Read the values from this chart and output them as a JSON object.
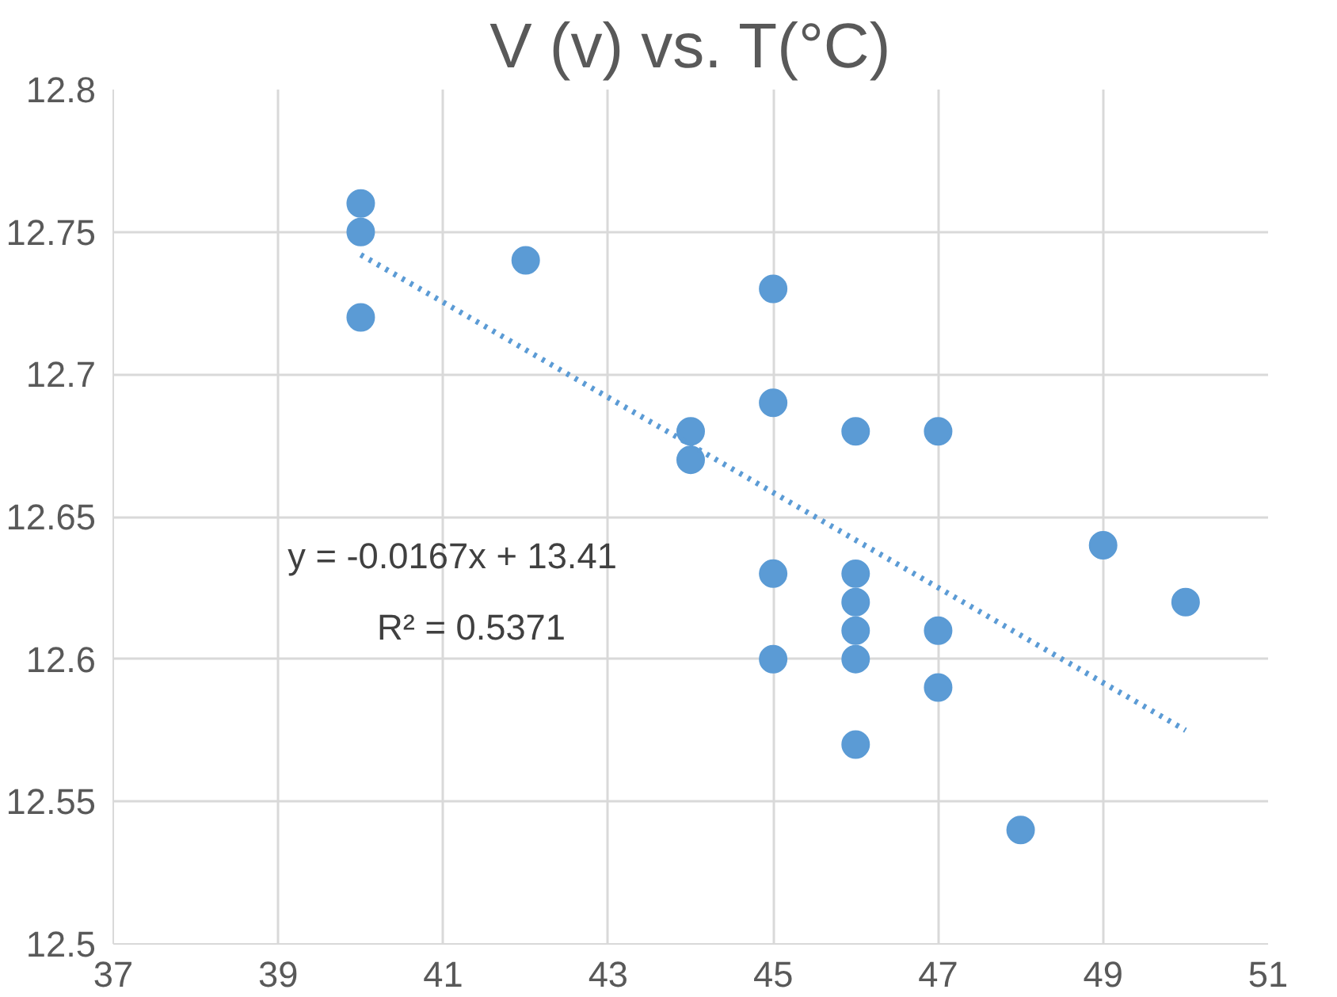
{
  "chart_data": {
    "type": "scatter",
    "title": "V (v) vs. T(°C)",
    "series": [
      {
        "color": "#5b9bd5",
        "marker": "circle",
        "x": [
          40,
          40,
          40,
          42,
          44,
          44,
          45,
          45,
          45,
          45,
          46,
          46,
          46,
          46,
          46,
          46,
          47,
          47,
          47,
          48,
          49,
          50
        ],
        "values": [
          12.76,
          12.75,
          12.72,
          12.74,
          12.68,
          12.67,
          12.73,
          12.69,
          12.63,
          12.6,
          12.68,
          12.63,
          12.62,
          12.61,
          12.6,
          12.57,
          12.68,
          12.61,
          12.59,
          12.54,
          12.64,
          12.62
        ]
      },
      {
        "type": "line",
        "color": "#5b9bd5",
        "line_style": "dotted",
        "x": [
          40,
          50
        ],
        "values": [
          12.742,
          12.575
        ]
      }
    ],
    "xlim": [
      37,
      51
    ],
    "xticks": [
      37,
      39,
      41,
      43,
      45,
      47,
      49,
      51
    ],
    "ylim": [
      12.5,
      12.8
    ],
    "yticks": [
      12.5,
      12.55,
      12.6,
      12.65,
      12.7,
      12.75,
      12.8
    ],
    "grid": true,
    "annotations": [
      "y = -0.0167x + 13.41",
      "R² = 0.5371"
    ]
  }
}
